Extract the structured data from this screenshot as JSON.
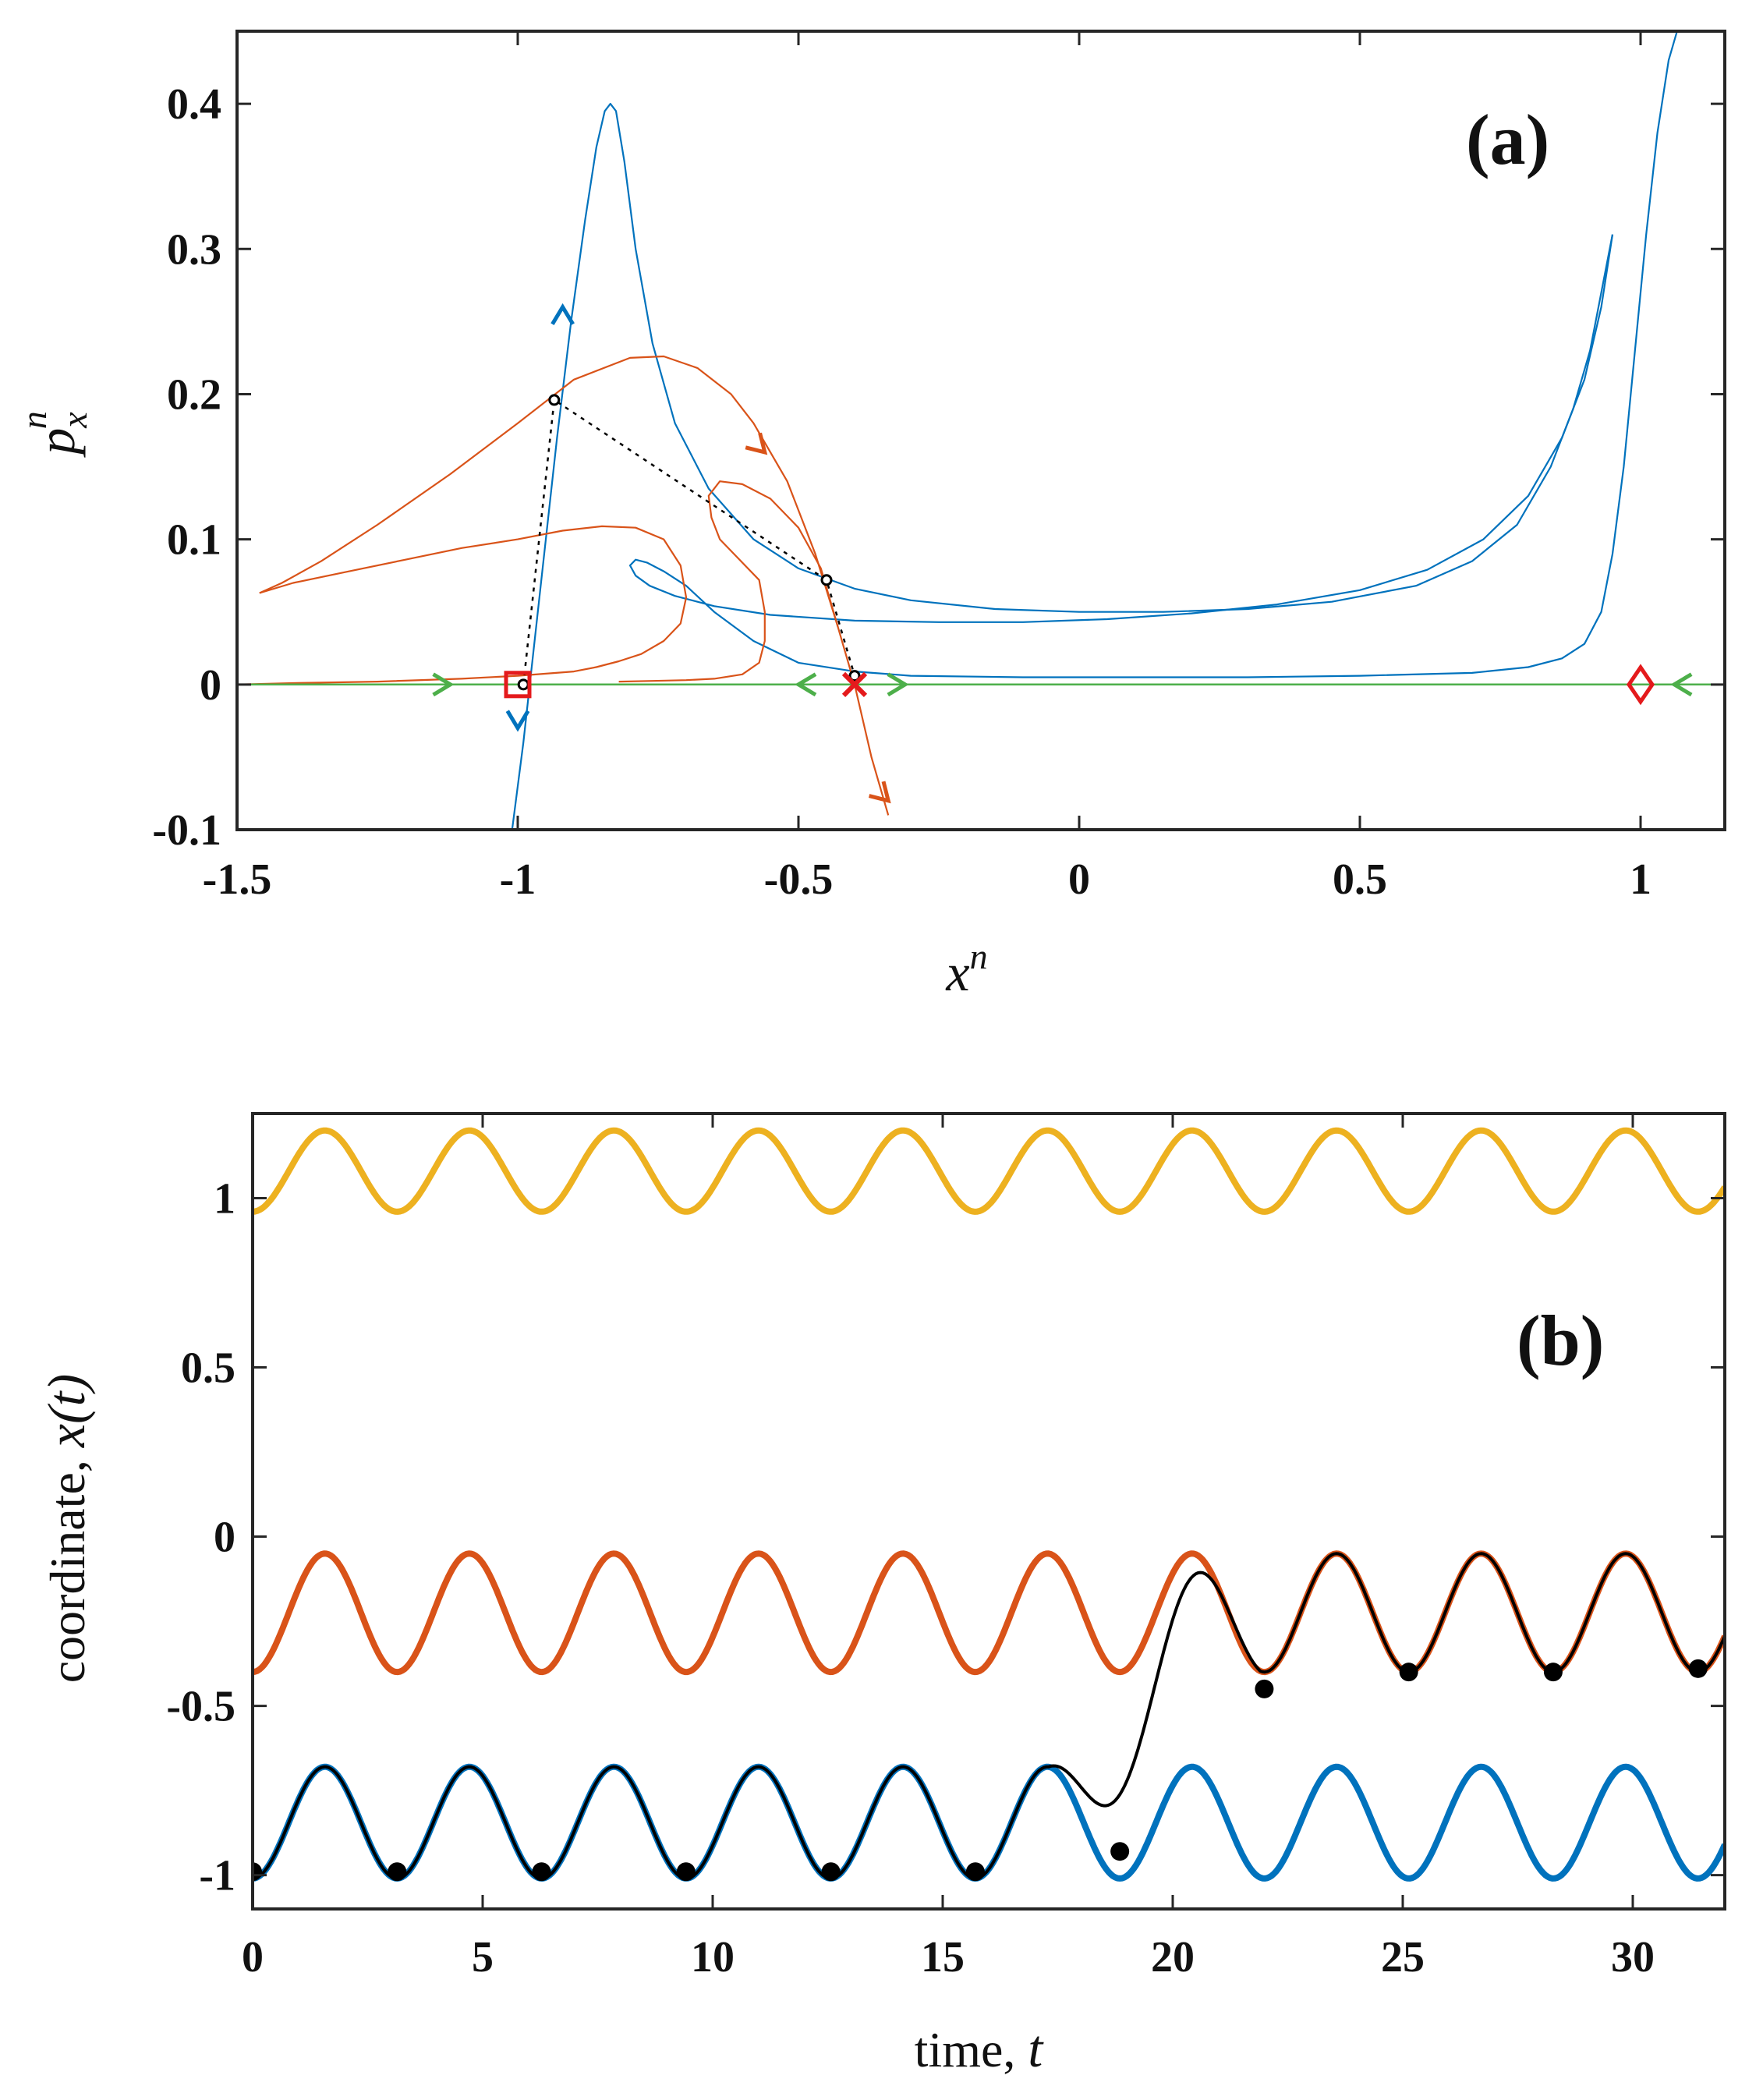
{
  "colors": {
    "blue": "#0072BD",
    "orange": "#D95319",
    "yellow": "#EDB120",
    "green": "#4DAF4A",
    "red": "#E41A1C",
    "black": "#000000"
  },
  "chart_data": [
    {
      "panel": "a",
      "type": "line",
      "title": "(a)",
      "xlabel_base": "x",
      "xlabel_sup": "n",
      "ylabel_base": "p",
      "ylabel_sub": "x",
      "ylabel_sup": "n",
      "xlim": [
        -1.5,
        1.15
      ],
      "ylim": [
        -0.1,
        0.45
      ],
      "xticks": [
        -1.5,
        -1,
        -0.5,
        0,
        0.5,
        1
      ],
      "xtick_labels": [
        "-1.5",
        "-1",
        "-0.5",
        "0",
        "0.5",
        "1"
      ],
      "yticks": [
        -0.1,
        0,
        0.1,
        0.2,
        0.3,
        0.4
      ],
      "ytick_labels": [
        "-0.1",
        "0",
        "0.1",
        "0.2",
        "0.3",
        "0.4"
      ],
      "series": [
        {
          "name": "unstable manifold (blue)",
          "color": "blue",
          "x": [
            -1.01,
            -0.99,
            -0.97,
            -0.95,
            -0.93,
            -0.905,
            -0.88,
            -0.86,
            -0.845,
            -0.835,
            -0.825,
            -0.81,
            -0.79,
            -0.76,
            -0.72,
            -0.66,
            -0.58,
            -0.5,
            -0.4,
            -0.3,
            -0.15,
            0,
            0.15,
            0.3,
            0.45,
            0.6,
            0.7,
            0.78,
            0.84,
            0.88,
            0.91,
            0.935,
            0.95
          ],
          "y": [
            -0.1,
            -0.04,
            0.03,
            0.1,
            0.17,
            0.25,
            0.32,
            0.37,
            0.395,
            0.4,
            0.395,
            0.36,
            0.3,
            0.235,
            0.18,
            0.135,
            0.1,
            0.08,
            0.066,
            0.058,
            0.052,
            0.05,
            0.05,
            0.052,
            0.057,
            0.068,
            0.085,
            0.11,
            0.15,
            0.19,
            0.23,
            0.28,
            0.31
          ]
        },
        {
          "name": "unstable manifold inner loop (blue)",
          "color": "blue",
          "x": [
            0.95,
            0.93,
            0.9,
            0.86,
            0.8,
            0.72,
            0.62,
            0.5,
            0.35,
            0.2,
            0.05,
            -0.1,
            -0.25,
            -0.4,
            -0.55,
            -0.65,
            -0.72,
            -0.765,
            -0.79,
            -0.8,
            -0.79,
            -0.77,
            -0.74,
            -0.7,
            -0.65,
            -0.58,
            -0.5,
            -0.4,
            -0.3,
            -0.1,
            0.1,
            0.3,
            0.5,
            0.7,
            0.8,
            0.86,
            0.9,
            0.93,
            0.95,
            0.97,
            0.99,
            1.01,
            1.03,
            1.05,
            1.065
          ],
          "y": [
            0.31,
            0.26,
            0.21,
            0.17,
            0.13,
            0.1,
            0.079,
            0.065,
            0.055,
            0.049,
            0.045,
            0.043,
            0.043,
            0.044,
            0.048,
            0.054,
            0.061,
            0.068,
            0.075,
            0.082,
            0.086,
            0.084,
            0.078,
            0.068,
            0.05,
            0.03,
            0.015,
            0.009,
            0.006,
            0.005,
            0.005,
            0.005,
            0.006,
            0.008,
            0.012,
            0.018,
            0.028,
            0.05,
            0.09,
            0.15,
            0.23,
            0.31,
            0.38,
            0.43,
            0.45
          ]
        },
        {
          "name": "stable manifold (orange)",
          "color": "orange",
          "x": [
            -1.46,
            -1.42,
            -1.35,
            -1.25,
            -1.12,
            -1.0,
            -0.9,
            -0.8,
            -0.74,
            -0.68,
            -0.62,
            -0.58,
            -0.55,
            -0.52,
            -0.5,
            -0.47,
            -0.43,
            -0.4,
            -0.37,
            -0.34
          ],
          "y": [
            0.063,
            0.07,
            0.085,
            0.11,
            0.145,
            0.18,
            0.21,
            0.225,
            0.226,
            0.218,
            0.2,
            0.18,
            0.16,
            0.14,
            0.12,
            0.09,
            0.04,
            0.0,
            -0.05,
            -0.09
          ]
        },
        {
          "name": "stable manifold inner branch (orange)",
          "color": "orange",
          "x": [
            -1.46,
            -1.4,
            -1.3,
            -1.2,
            -1.1,
            -1.0,
            -0.92,
            -0.85,
            -0.79,
            -0.74,
            -0.71,
            -0.7,
            -0.71,
            -0.74,
            -0.78,
            -0.82,
            -0.86,
            -0.9,
            -1.0,
            -1.1,
            -1.25,
            -1.4,
            -1.5
          ],
          "y": [
            0.063,
            0.07,
            0.078,
            0.086,
            0.094,
            0.1,
            0.106,
            0.109,
            0.108,
            0.1,
            0.082,
            0.06,
            0.042,
            0.03,
            0.021,
            0.016,
            0.012,
            0.009,
            0.006,
            0.004,
            0.002,
            0.001,
            0.0
          ]
        },
        {
          "name": "stable manifold loop (orange)",
          "color": "orange",
          "x": [
            -0.43,
            -0.46,
            -0.5,
            -0.55,
            -0.6,
            -0.64,
            -0.66,
            -0.655,
            -0.64,
            -0.61,
            -0.57,
            -0.56,
            -0.56,
            -0.57,
            -0.6,
            -0.65,
            -0.7,
            -0.76,
            -0.82
          ],
          "y": [
            0.04,
            0.08,
            0.108,
            0.128,
            0.138,
            0.14,
            0.13,
            0.115,
            0.1,
            0.088,
            0.072,
            0.05,
            0.03,
            0.015,
            0.007,
            0.004,
            0.003,
            0.0025,
            0.002
          ]
        },
        {
          "name": "invariant line (green)",
          "color": "green",
          "x": [
            -1.5,
            1.15
          ],
          "y": [
            0.0,
            0.0
          ]
        },
        {
          "name": "stroboscopic orbit (black dotted)",
          "color": "black",
          "dotted": true,
          "x": [
            -0.99,
            -0.935,
            -0.45,
            -0.4
          ],
          "y": [
            0.0,
            0.196,
            0.072,
            0.006
          ]
        }
      ],
      "markers": [
        {
          "name": "square",
          "x": -1.0,
          "y": 0.0,
          "color": "red"
        },
        {
          "name": "cross",
          "x": -0.4,
          "y": 0.0,
          "color": "red"
        },
        {
          "name": "diamond",
          "x": 1.0,
          "y": 0.0,
          "color": "red"
        }
      ],
      "orbit_points": {
        "x": [
          -0.99,
          -0.935,
          -0.45,
          -0.4
        ],
        "y": [
          0.0,
          0.196,
          0.072,
          0.006
        ]
      },
      "arrows": [
        {
          "x": -0.92,
          "y": 0.26,
          "dir": "up",
          "color": "blue"
        },
        {
          "x": -1.0,
          "y": -0.03,
          "dir": "down",
          "color": "blue"
        },
        {
          "x": -0.56,
          "y": 0.16,
          "dir": "down-right",
          "color": "orange"
        },
        {
          "x": -0.34,
          "y": -0.08,
          "dir": "down-right",
          "color": "orange"
        },
        {
          "x": -1.12,
          "y": 0.0,
          "dir": "right",
          "color": "green"
        },
        {
          "x": -0.5,
          "y": 0.0,
          "dir": "left",
          "color": "green"
        },
        {
          "x": -0.31,
          "y": 0.0,
          "dir": "right",
          "color": "green"
        },
        {
          "x": 1.06,
          "y": 0.0,
          "dir": "left",
          "color": "green"
        }
      ]
    },
    {
      "panel": "b",
      "type": "line",
      "title": "(b)",
      "xlabel": "time, ",
      "xlabel_var": "t",
      "ylabel": "coordinate, ",
      "ylabel_var": "x(t)",
      "xlim": [
        0,
        32
      ],
      "ylim": [
        -1.1,
        1.25
      ],
      "xticks": [
        0,
        5,
        10,
        15,
        20,
        25,
        30
      ],
      "xtick_labels": [
        "0",
        "5",
        "10",
        "15",
        "20",
        "25",
        "30"
      ],
      "yticks": [
        -1,
        -0.5,
        0,
        0.5,
        1
      ],
      "ytick_labels": [
        "-1",
        "-0.5",
        "0",
        "0.5",
        "1"
      ],
      "period": 3.14159,
      "series": [
        {
          "name": "upper periodic orbit (yellow)",
          "color": "yellow",
          "center": 1.08,
          "amplitude": 0.12
        },
        {
          "name": "middle periodic orbit (orange)",
          "color": "orange",
          "center": -0.225,
          "amplitude": 0.175
        },
        {
          "name": "lower periodic orbit (blue)",
          "color": "blue",
          "center": -0.845,
          "amplitude": 0.165
        },
        {
          "name": "transition trajectory (black)",
          "color": "black",
          "switch_start": 17.3,
          "switch_end": 21.9
        }
      ],
      "sample_points": {
        "t": [
          0,
          3.14,
          6.28,
          9.42,
          12.57,
          15.71,
          18.85,
          21.99,
          25.13,
          28.27,
          31.42
        ],
        "x": [
          -0.99,
          -0.99,
          -0.99,
          -0.99,
          -0.99,
          -0.99,
          -0.93,
          -0.45,
          -0.4,
          -0.4,
          -0.39
        ]
      }
    }
  ]
}
